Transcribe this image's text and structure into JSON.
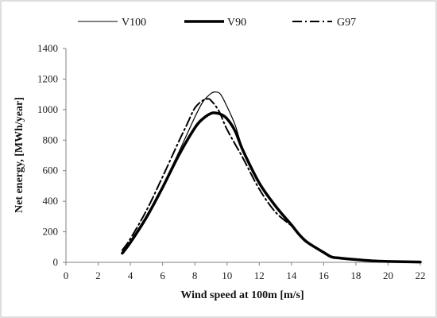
{
  "chart_data": {
    "type": "line",
    "xlabel": "Wind speed at 100m [m/s]",
    "ylabel": "Net energy, [MWh/year]",
    "xlim": [
      0,
      22
    ],
    "ylim": [
      0,
      1400
    ],
    "xticks": [
      "0",
      "2",
      "4",
      "6",
      "8",
      "10",
      "12",
      "14",
      "16",
      "18",
      "20",
      "22"
    ],
    "yticks": [
      "0",
      "200",
      "400",
      "600",
      "800",
      "1000",
      "1200",
      "1400"
    ],
    "grid": false,
    "legend_position": "top",
    "series": [
      {
        "name": "V100",
        "style": "thin-solid",
        "x": [
          3.5,
          4,
          5,
          6,
          7,
          8,
          8.5,
          9,
          9.3,
          9.6,
          10,
          10.5,
          11,
          12,
          13,
          14,
          14.5,
          15,
          16,
          16.5,
          17,
          18,
          19,
          20,
          21,
          22
        ],
        "y": [
          55,
          130,
          300,
          500,
          720,
          950,
          1050,
          1105,
          1115,
          1100,
          1020,
          900,
          740,
          520,
          370,
          245,
          180,
          130,
          65,
          35,
          28,
          18,
          10,
          6,
          4,
          2
        ]
      },
      {
        "name": "V90",
        "style": "thick-solid",
        "x": [
          3.5,
          4,
          5,
          6,
          7,
          8,
          8.5,
          9,
          9.3,
          9.6,
          10,
          10.5,
          11,
          12,
          13,
          14,
          14.5,
          15,
          16,
          16.5,
          17,
          18,
          19,
          20,
          21,
          22
        ],
        "y": [
          60,
          130,
          295,
          490,
          700,
          880,
          940,
          975,
          978,
          970,
          940,
          860,
          730,
          520,
          370,
          245,
          180,
          130,
          65,
          35,
          28,
          18,
          10,
          6,
          4,
          2
        ]
      },
      {
        "name": "G97",
        "style": "dash-dot",
        "x": [
          3.5,
          4,
          5,
          6,
          7,
          7.5,
          8,
          8.5,
          8.8,
          9,
          9.5,
          10,
          11,
          12,
          13,
          14
        ],
        "y": [
          80,
          155,
          340,
          560,
          790,
          900,
          1010,
          1060,
          1070,
          1060,
          990,
          870,
          680,
          480,
          330,
          240
        ]
      }
    ]
  }
}
